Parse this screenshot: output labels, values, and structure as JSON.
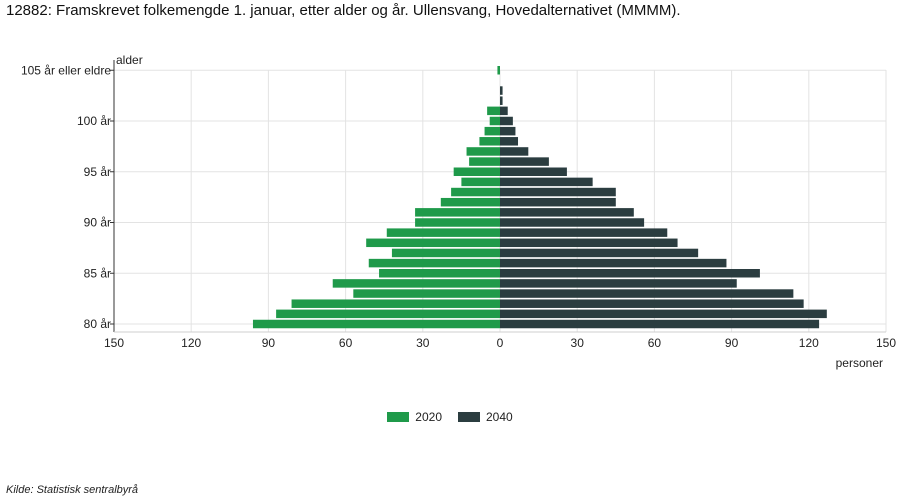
{
  "title": "12882: Framskrevet folkemengde 1. januar, etter alder og år. Ullensvang, Hovedalternativet (MMMM).",
  "source": "Kilde:  Statistisk sentralbyrå",
  "chart_data": {
    "type": "bar",
    "orientation": "horizontal-population-pyramid",
    "ylabel": "alder",
    "xlabel": "personer",
    "xlim": [
      -150,
      150
    ],
    "x_ticks": [
      -150,
      -120,
      -90,
      -60,
      -30,
      0,
      30,
      60,
      90,
      120,
      150
    ],
    "x_tick_labels": [
      "150",
      "120",
      "90",
      "60",
      "30",
      "0",
      "30",
      "60",
      "90",
      "120",
      "150"
    ],
    "categories": [
      "80 år",
      "81 år",
      "82 år",
      "83 år",
      "84 år",
      "85 år",
      "86 år",
      "87 år",
      "88 år",
      "89 år",
      "90 år",
      "91 år",
      "92 år",
      "93 år",
      "94 år",
      "95 år",
      "96 år",
      "97 år",
      "98 år",
      "99 år",
      "100 år",
      "101 år",
      "102 år",
      "103 år",
      "104 år",
      "105 år eller eldre"
    ],
    "y_tick_labels": {
      "0": "80 år",
      "5": "85 år",
      "10": "90 år",
      "15": "95 år",
      "20": "100 år",
      "25": "105 år eller eldre"
    },
    "series": [
      {
        "name": "2020",
        "color": "#1f9a4a",
        "side": "left",
        "values": [
          96,
          87,
          81,
          57,
          65,
          47,
          51,
          42,
          52,
          44,
          33,
          33,
          23,
          19,
          15,
          18,
          12,
          13,
          8,
          6,
          4,
          5,
          0,
          0,
          0,
          1
        ]
      },
      {
        "name": "2040",
        "color": "#2b3d40",
        "side": "right",
        "values": [
          124,
          127,
          118,
          114,
          92,
          101,
          88,
          77,
          69,
          65,
          56,
          52,
          45,
          45,
          36,
          26,
          19,
          11,
          7,
          6,
          5,
          3,
          1,
          1,
          0,
          0
        ]
      }
    ],
    "grid": true,
    "legend_position": "bottom-center"
  }
}
